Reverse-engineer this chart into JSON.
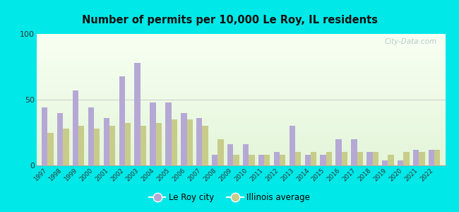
{
  "title": "Number of permits per 10,000 Le Roy, IL residents",
  "years": [
    1997,
    1998,
    1999,
    2000,
    2001,
    2002,
    2003,
    2004,
    2005,
    2006,
    2007,
    2008,
    2009,
    2010,
    2011,
    2012,
    2013,
    2014,
    2015,
    2016,
    2017,
    2018,
    2019,
    2020,
    2021,
    2022
  ],
  "le_roy": [
    44,
    40,
    57,
    44,
    36,
    68,
    78,
    48,
    48,
    40,
    36,
    8,
    16,
    16,
    8,
    10,
    30,
    8,
    8,
    20,
    20,
    10,
    4,
    4,
    12,
    12
  ],
  "illinois": [
    25,
    28,
    30,
    28,
    30,
    32,
    30,
    32,
    35,
    35,
    30,
    20,
    8,
    8,
    8,
    8,
    10,
    10,
    10,
    10,
    10,
    10,
    8,
    10,
    10,
    12
  ],
  "le_roy_color": "#b5a8d5",
  "illinois_color": "#c8cc8a",
  "background_outer": "#00e8e8",
  "ylim": [
    0,
    100
  ],
  "yticks": [
    0,
    50,
    100
  ],
  "watermark": "City-Data.com",
  "legend_le_roy": "Le Roy city",
  "legend_illinois": "Illinois average"
}
